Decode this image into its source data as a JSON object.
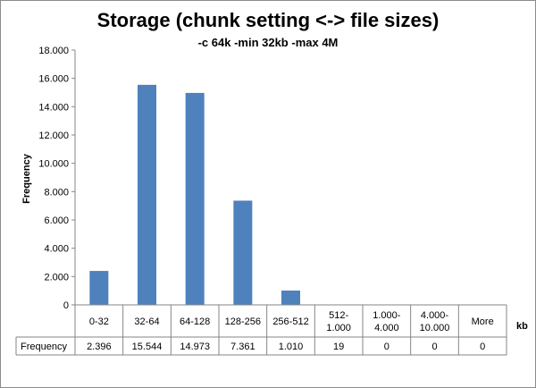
{
  "chart_data": {
    "type": "bar",
    "title": "Storage (chunk setting <-> file sizes)",
    "subtitle": "-c 64k -min 32kb -max 4M",
    "xlabel": "kb",
    "ylabel": "Frequency",
    "ylim": [
      0,
      18000
    ],
    "yticks": [
      0,
      2000,
      4000,
      6000,
      8000,
      10000,
      12000,
      14000,
      16000,
      18000
    ],
    "ytick_labels": [
      "0",
      "2.000",
      "4.000",
      "6.000",
      "8.000",
      "10.000",
      "12.000",
      "14.000",
      "16.000",
      "18.000"
    ],
    "categories": [
      [
        "0-32"
      ],
      [
        "32-64"
      ],
      [
        "64-128"
      ],
      [
        "128-256"
      ],
      [
        "256-512"
      ],
      [
        "512-",
        "1.000"
      ],
      [
        "1.000-",
        "4.000"
      ],
      [
        "4.000-",
        "10.000"
      ],
      [
        "More"
      ]
    ],
    "series": [
      {
        "name": "Frequency",
        "color": "#4f81bd",
        "values": [
          2396,
          15544,
          14973,
          7361,
          1010,
          19,
          0,
          0,
          0
        ],
        "value_labels": [
          "2.396",
          "15.544",
          "14.973",
          "7.361",
          "1.010",
          "19",
          "0",
          "0",
          "0"
        ]
      }
    ],
    "grid": false,
    "legend": "none (data table below x-axis)"
  }
}
